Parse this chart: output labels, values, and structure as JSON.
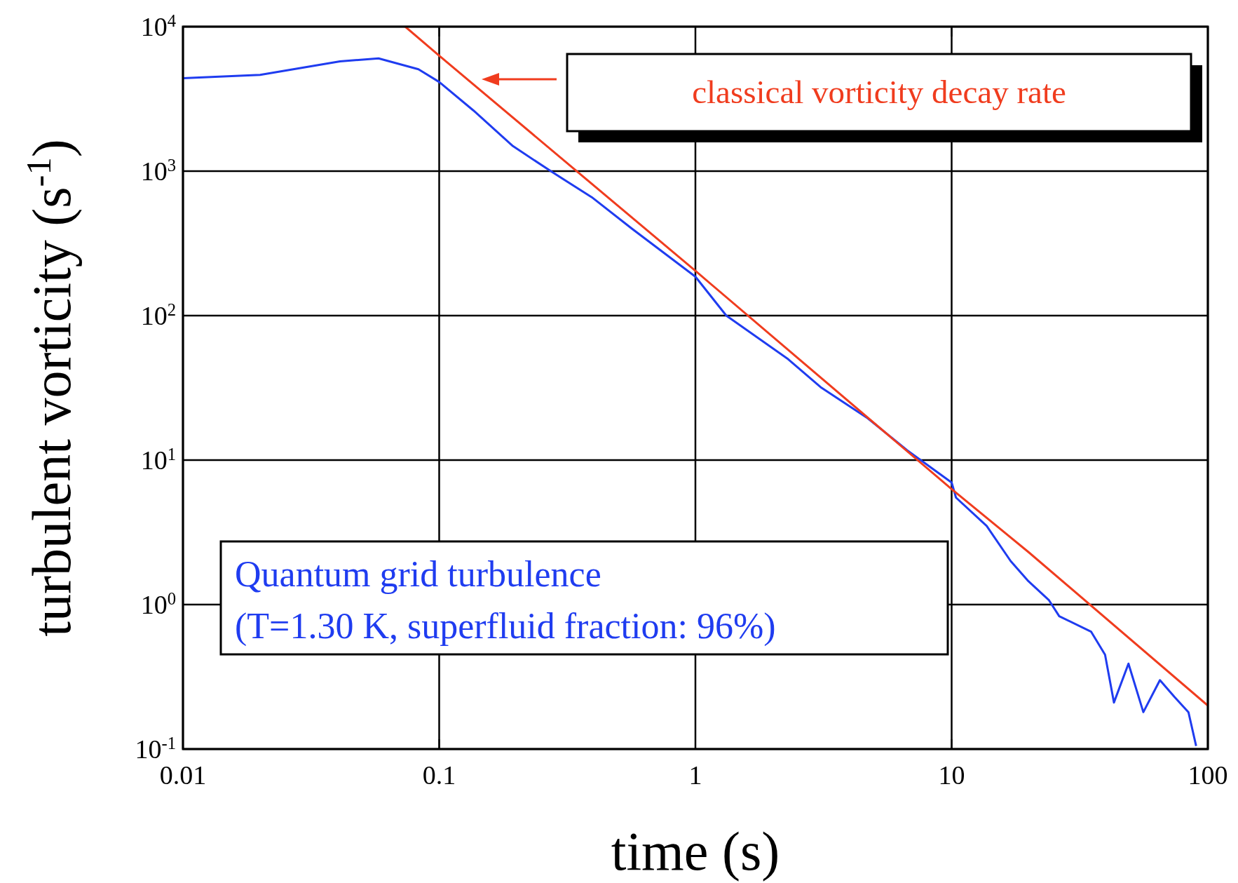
{
  "chart_data": {
    "type": "line",
    "xlabel": "time (s)",
    "ylabel": "turbulent vorticity (s$^{-1}$)",
    "log": "xy",
    "grid": true,
    "line_style": "solid",
    "xlim": [
      0.01,
      100
    ],
    "ylim": [
      0.1,
      10000
    ],
    "xticks": [
      0.01,
      0.1,
      1,
      10,
      100
    ],
    "yticks": [
      {
        "value": 0.1,
        "label": "10$^{-1}$"
      },
      {
        "value": 1,
        "label": "10$^{0}$"
      },
      {
        "value": 10,
        "label": "10$^{1}$"
      },
      {
        "value": 100,
        "label": "10$^{2}$"
      },
      {
        "value": 1000,
        "label": "10$^{3}$"
      },
      {
        "value": 10000,
        "label": "10$^{4}$"
      }
    ],
    "series": [
      {
        "name": "Quantum grid turbulence",
        "color": "#1f3cf0",
        "x": [
          0.01,
          0.02,
          0.041,
          0.058,
          0.083,
          0.1,
          0.136,
          0.194,
          0.276,
          0.394,
          0.565,
          1.0,
          1.32,
          2.3,
          3.08,
          4.7,
          6.7,
          10,
          10.4,
          13.7,
          17,
          19.8,
          24,
          26.3,
          35,
          39.7,
          43,
          49,
          56,
          65,
          74,
          84,
          90
        ],
        "values": [
          4400,
          4640,
          5750,
          6030,
          5070,
          4140,
          2630,
          1490,
          985,
          660,
          400,
          186,
          100,
          50,
          32,
          19.5,
          11.7,
          7,
          5.5,
          3.5,
          2.0,
          1.47,
          1.07,
          0.83,
          0.65,
          0.45,
          0.21,
          0.39,
          0.18,
          0.3,
          0.23,
          0.18,
          0.105
        ]
      },
      {
        "name": "classical vorticity decay rate",
        "color": "#f03c1e",
        "x": [
          0.0737,
          0.1,
          1,
          10,
          20,
          100
        ],
        "values": [
          10000,
          6300,
          204,
          6.3,
          2.3,
          0.2
        ]
      }
    ],
    "annotations": [
      "(T=1.30 K, superfluid fraction: 96%)"
    ]
  }
}
